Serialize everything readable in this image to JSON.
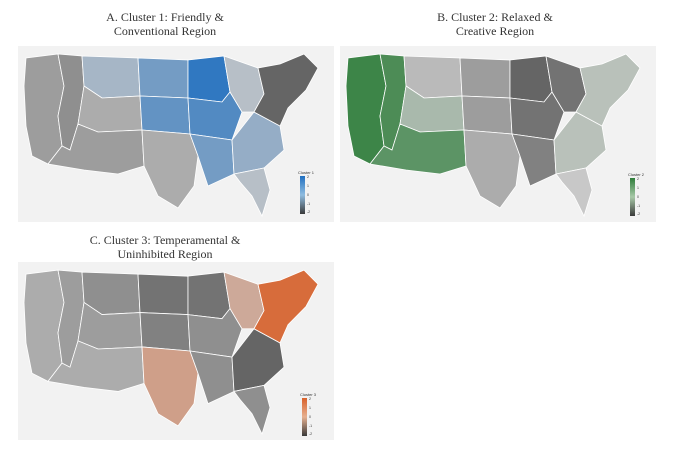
{
  "panels": {
    "a": {
      "title_line1": "A. Cluster 1: Friendly &",
      "title_line2": "Conventional Region",
      "legend_title": "Cluster 1",
      "legend_ticks": [
        "2",
        "1",
        "0",
        "-1",
        "-2"
      ],
      "palette": {
        "high": "#1f6fc0",
        "mid": "#8fbce0",
        "low": "#3a3a3a"
      },
      "state_levels": {
        "west_coast": 0.35,
        "nevada": 0.3,
        "rockies_n": 0.6,
        "rockies_s": 0.4,
        "southwest": 0.35,
        "plains_n": 0.75,
        "plains_c": 0.8,
        "texas": 0.4,
        "midwest_n": 0.95,
        "midwest_c": 0.85,
        "great_lakes": 0.55,
        "south_central": 0.75,
        "southeast": 0.65,
        "florida": 0.55,
        "northeast": 0.15
      }
    },
    "b": {
      "title_line1": "B. Cluster 2: Relaxed &",
      "title_line2": "Creative Region",
      "legend_title": "Cluster 2",
      "legend_ticks": [
        "2",
        "1",
        "0",
        "-1",
        "-2"
      ],
      "palette": {
        "high": "#2e7d3a",
        "mid": "#a8c9a8",
        "low": "#3a3a3a"
      },
      "state_levels": {
        "west_coast": 0.95,
        "nevada": 0.9,
        "rockies_n": 0.45,
        "rockies_s": 0.6,
        "southwest": 0.85,
        "plains_n": 0.35,
        "plains_c": 0.35,
        "texas": 0.4,
        "midwest_n": 0.15,
        "midwest_c": 0.2,
        "great_lakes": 0.2,
        "south_central": 0.25,
        "southeast": 0.55,
        "florida": 0.5,
        "northeast": 0.55
      }
    },
    "c": {
      "title_line1": "C. Cluster 3: Temperamental &",
      "title_line2": "Uninhibited Region",
      "legend_title": "Cluster 3",
      "legend_ticks": [
        "2",
        "1",
        "0",
        "-1",
        "-2"
      ],
      "palette": {
        "high": "#d9622b",
        "mid": "#e6b090",
        "low": "#3a3a3a"
      },
      "state_levels": {
        "west_coast": 0.4,
        "nevada": 0.35,
        "rockies_n": 0.3,
        "rockies_s": 0.35,
        "southwest": 0.4,
        "plains_n": 0.2,
        "plains_c": 0.25,
        "texas": 0.7,
        "midwest_n": 0.2,
        "midwest_c": 0.3,
        "great_lakes": 0.65,
        "south_central": 0.3,
        "southeast": 0.15,
        "florida": 0.3,
        "northeast": 0.95
      }
    }
  }
}
